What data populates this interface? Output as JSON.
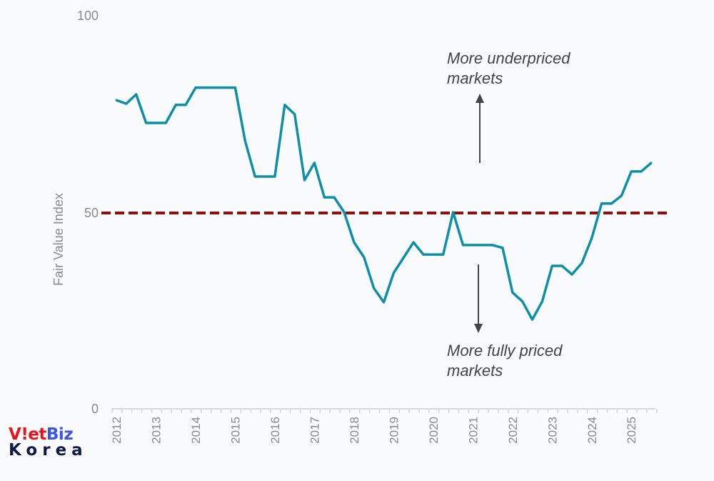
{
  "chart_data": {
    "type": "line",
    "title": "",
    "xlabel": "",
    "ylabel": "Fair Value Index",
    "ylim": [
      0,
      100
    ],
    "yticks": [
      "0",
      "50",
      "100"
    ],
    "xticks": [
      "2012",
      "2013",
      "2014",
      "2015",
      "2016",
      "2017",
      "2018",
      "2019",
      "2020",
      "2021",
      "2022",
      "2023",
      "2024",
      "2025"
    ],
    "x_frequency": "quarterly, 2012 Q1 to 2025 Q3",
    "series": [
      {
        "name": "Fair Value Index",
        "color": "#0e8fa8",
        "values": [
          78.8,
          77.9,
          80.3,
          73,
          73,
          73,
          77.6,
          77.6,
          82,
          82,
          82,
          82,
          82,
          68.4,
          59.3,
          59.3,
          59.3,
          77.6,
          75.2,
          58.4,
          62.8,
          54,
          54,
          50.2,
          42.5,
          38.7,
          30.8,
          27.2,
          34.7,
          38.6,
          42.5,
          39.4,
          39.4,
          39.4,
          50.2,
          41.8,
          41.8,
          41.8,
          41.8,
          41.1,
          29.7,
          27.4,
          22.8,
          27.4,
          36.5,
          36.5,
          34.3,
          37.2,
          43.6,
          52.4,
          52.4,
          54.4,
          60.6,
          60.6,
          62.8
        ]
      }
    ],
    "reference_line": {
      "value": 50,
      "color": "#8b1010",
      "style": "dashed"
    },
    "annotations": {
      "up": [
        "More underpriced",
        "markets"
      ],
      "down": [
        "More fully priced",
        "markets"
      ]
    }
  },
  "logo": {
    "part1": "V",
    "part2": "!et",
    "part3": "Biz",
    "line2": "Korea"
  }
}
